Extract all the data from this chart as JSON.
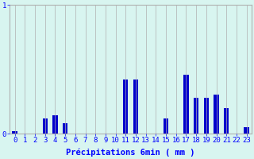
{
  "categories": [
    0,
    1,
    2,
    3,
    4,
    5,
    6,
    7,
    8,
    9,
    10,
    11,
    12,
    13,
    14,
    15,
    16,
    17,
    18,
    19,
    20,
    21,
    22,
    23
  ],
  "values": [
    0.02,
    0.0,
    0.0,
    0.12,
    0.14,
    0.08,
    0.0,
    0.0,
    0.0,
    0.0,
    0.0,
    0.42,
    0.42,
    0.0,
    0.0,
    0.12,
    0.0,
    0.46,
    0.28,
    0.28,
    0.3,
    0.2,
    0.0,
    0.05
  ],
  "bar_color": "#0000cc",
  "background_color": "#d8f5f0",
  "grid_color": "#b0b0b0",
  "xlabel": "Précipitations 6min ( mm )",
  "ylim": [
    0,
    1.0
  ],
  "xlim": [
    -0.5,
    23.5
  ],
  "tick_labels": [
    "0",
    "1",
    "2",
    "3",
    "4",
    "5",
    "6",
    "7",
    "8",
    "9",
    "10",
    "11",
    "12",
    "13",
    "14",
    "15",
    "16",
    "17",
    "18",
    "19",
    "20",
    "21",
    "22",
    "23"
  ],
  "yticks": [
    0,
    1
  ],
  "label_fontsize": 6.5,
  "xlabel_fontsize": 7.5,
  "bar_width": 0.5
}
